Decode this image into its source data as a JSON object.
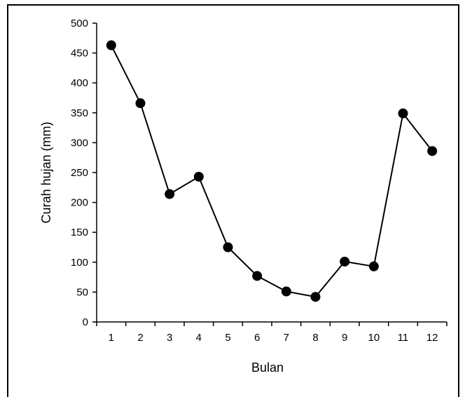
{
  "chart_data": {
    "type": "line",
    "title": "",
    "xlabel": "Bulan",
    "ylabel": "Curah hujan (mm)",
    "categories": [
      "1",
      "2",
      "3",
      "4",
      "5",
      "6",
      "7",
      "8",
      "9",
      "10",
      "11",
      "12"
    ],
    "values": [
      463,
      366,
      214,
      243,
      125,
      77,
      51,
      42,
      101,
      93,
      349,
      286
    ],
    "ylim": [
      0,
      500
    ],
    "yticks": [
      "0",
      "50",
      "100",
      "150",
      "200",
      "250",
      "300",
      "350",
      "400",
      "450",
      "500"
    ],
    "grid": false,
    "legend": "none",
    "colors": {
      "line": "#000000",
      "marker": "#000000"
    }
  }
}
